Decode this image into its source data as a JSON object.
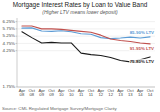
{
  "chart_data": {
    "type": "line",
    "title": "Mortgage Interest Rates by Loan to Value Band",
    "subtitle": "(Higher LTV means lower deposit)",
    "source": "Source: CML Regulated Mortgage Survey/Mortgage Clarity",
    "categories": [
      "Apr\n08",
      "Oct\n08",
      "Apr\n09",
      "Oct\n09",
      "Apr\n10",
      "Oct\n10",
      "Apr\n11",
      "Oct\n11",
      "Apr\n12",
      "Oct\n12",
      "Apr\n13",
      "Oct\n13",
      "Apr\n14",
      "Oct\n14"
    ],
    "series": [
      {
        "name": "85-90% LTV",
        "color": "#5b9bd5",
        "values": [
          5.8,
          5.82,
          5.6,
          5.58,
          5.62,
          5.55,
          5.42,
          5.38,
          5.15,
          5.08,
          5.12,
          5.18,
          5.12,
          5.2
        ]
      },
      {
        "name": "91-95% LTV",
        "color": "#c0504d",
        "values": [
          5.95,
          5.95,
          5.75,
          5.75,
          5.72,
          5.65,
          5.58,
          5.52,
          5.32,
          5.05,
          4.95,
          4.88,
          4.78,
          4.72
        ]
      },
      {
        "name": "75-80% LTV",
        "color": "#1a1a1a",
        "values": [
          5.55,
          5.15,
          4.78,
          4.82,
          4.78,
          4.78,
          4.08,
          3.98,
          3.92,
          3.78,
          3.58,
          3.48,
          3.62,
          3.82
        ]
      }
    ],
    "ylim": [
      1.75,
      6.5
    ],
    "yticks": [
      {
        "value": 1.75,
        "label": "1.75%"
      },
      {
        "value": 4.25,
        "label": "4.25%"
      },
      {
        "value": 4.75,
        "label": "4.75%"
      },
      {
        "value": 5.25,
        "label": "5.25%"
      },
      {
        "value": 5.75,
        "label": "5.75%"
      },
      {
        "value": 6.25,
        "label": "6.25%"
      }
    ],
    "grid": true
  }
}
